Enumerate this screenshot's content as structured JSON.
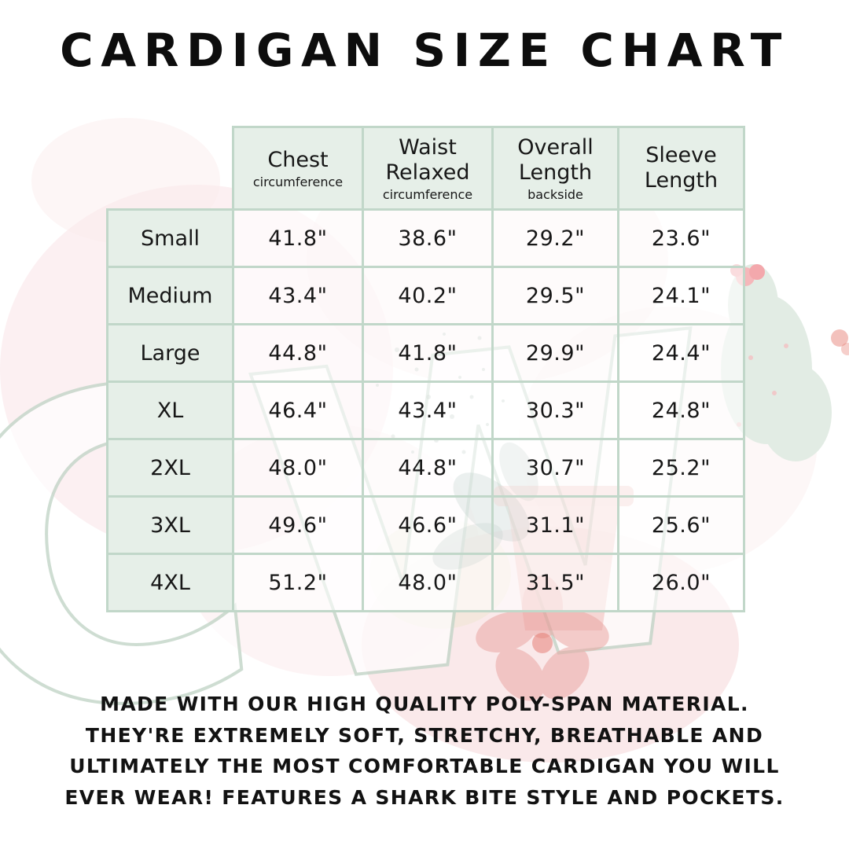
{
  "title": "CARDIGAN SIZE CHART",
  "chart_data": {
    "type": "table",
    "title": "Cardigan Size Chart",
    "unit": "inches",
    "columns": [
      {
        "label": "Chest",
        "sub": "circumference"
      },
      {
        "label": "Waist Relaxed",
        "sub": "circumference"
      },
      {
        "label": "Overall Length",
        "sub": "backside"
      },
      {
        "label": "Sleeve Length",
        "sub": ""
      }
    ],
    "rows": [
      {
        "size": "Small",
        "values": [
          "41.8\"",
          "38.6\"",
          "29.2\"",
          "23.6\""
        ]
      },
      {
        "size": "Medium",
        "values": [
          "43.4\"",
          "40.2\"",
          "29.5\"",
          "24.1\""
        ]
      },
      {
        "size": "Large",
        "values": [
          "44.8\"",
          "41.8\"",
          "29.9\"",
          "24.4\""
        ]
      },
      {
        "size": "XL",
        "values": [
          "46.4\"",
          "43.4\"",
          "30.3\"",
          "24.8\""
        ]
      },
      {
        "size": "2XL",
        "values": [
          "48.0\"",
          "44.8\"",
          "30.7\"",
          "25.2\""
        ]
      },
      {
        "size": "3XL",
        "values": [
          "49.6\"",
          "46.6\"",
          "31.1\"",
          "25.6\""
        ]
      },
      {
        "size": "4XL",
        "values": [
          "51.2\"",
          "48.0\"",
          "31.5\"",
          "26.0\""
        ]
      }
    ]
  },
  "description": {
    "text": "MADE WITH OUR HIGH QUALITY POLY-SPAN MATERIAL. THEY'RE EXTREMELY SOFT, STRETCHY, BREATHABLE AND ULTIMATELY THE MOST COMFORTABLE CARDIGAN YOU WILL EVER WEAR! FEATURES A SHARK BITE STYLE AND POCKETS."
  },
  "watermark": {
    "letters": "CW",
    "elements": [
      "outlined-letter-logo",
      "pink-paint-washes",
      "speckle-texture",
      "cactus-with-flower",
      "dark-teal-leaves",
      "flower-pot",
      "pink-flower"
    ]
  },
  "colors": {
    "background": "#ffffff",
    "text": "#121212",
    "table_cell_green": "#e6efe8",
    "table_border_sage": "#c1d7c9",
    "watermark_pink": "#f7dcdf",
    "watermark_red": "#e4756b",
    "watermark_teal": "#3d6b60",
    "watermark_pale_green": "#e2ece4"
  }
}
